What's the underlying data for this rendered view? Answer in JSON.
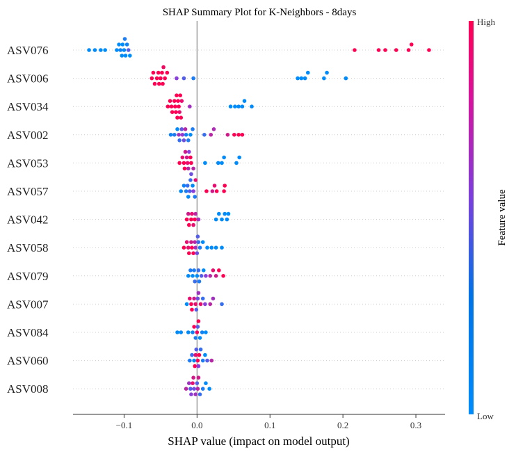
{
  "chart_data": {
    "type": "scatter",
    "title": "SHAP Summary Plot for K-Neighbors - 8days",
    "xlabel": "SHAP value (impact on model output)",
    "xlim": [
      -0.17,
      0.34
    ],
    "xticks": [
      -0.1,
      0.0,
      0.1,
      0.2,
      0.3
    ],
    "xtick_labels": [
      "−0.1",
      "0.0",
      "0.1",
      "0.2",
      "0.3"
    ],
    "colorbar": {
      "label": "Feature value",
      "high_label": "High",
      "low_label": "Low",
      "low_color": "#008bfb",
      "mid_color": "#8a3fdc",
      "high_color": "#ff0052"
    },
    "features": [
      {
        "name": "ASV076",
        "points": [
          {
            "x": -0.148,
            "v": 0.0
          },
          {
            "x": -0.14,
            "v": 0.0
          },
          {
            "x": -0.132,
            "v": 0.0
          },
          {
            "x": -0.126,
            "v": 0.0
          },
          {
            "x": -0.11,
            "v": 0.0
          },
          {
            "x": -0.107,
            "v": 0.0
          },
          {
            "x": -0.105,
            "v": 0.05
          },
          {
            "x": -0.103,
            "v": 0.0
          },
          {
            "x": -0.1,
            "v": 0.0
          },
          {
            "x": -0.098,
            "v": 0.0
          },
          {
            "x": -0.096,
            "v": 0.05
          },
          {
            "x": -0.094,
            "v": 0.3
          },
          {
            "x": -0.092,
            "v": 0.0
          },
          {
            "x": -0.102,
            "v": 0.0
          },
          {
            "x": -0.099,
            "v": 0.1
          },
          {
            "x": 0.216,
            "v": 1.0
          },
          {
            "x": 0.249,
            "v": 1.0
          },
          {
            "x": 0.258,
            "v": 1.0
          },
          {
            "x": 0.273,
            "v": 1.0
          },
          {
            "x": 0.29,
            "v": 1.0
          },
          {
            "x": 0.294,
            "v": 1.0
          },
          {
            "x": 0.318,
            "v": 1.0
          }
        ]
      },
      {
        "name": "ASV006",
        "points": [
          {
            "x": -0.062,
            "v": 1.0
          },
          {
            "x": -0.058,
            "v": 1.0
          },
          {
            "x": -0.055,
            "v": 1.0
          },
          {
            "x": -0.052,
            "v": 1.0
          },
          {
            "x": -0.05,
            "v": 1.0
          },
          {
            "x": -0.048,
            "v": 1.0
          },
          {
            "x": -0.046,
            "v": 0.95
          },
          {
            "x": -0.044,
            "v": 1.0
          },
          {
            "x": -0.06,
            "v": 1.0
          },
          {
            "x": -0.053,
            "v": 1.0
          },
          {
            "x": -0.047,
            "v": 1.0
          },
          {
            "x": -0.041,
            "v": 1.0
          },
          {
            "x": -0.028,
            "v": 0.5
          },
          {
            "x": -0.018,
            "v": 0.3
          },
          {
            "x": -0.005,
            "v": 0.1
          },
          {
            "x": 0.138,
            "v": 0.0
          },
          {
            "x": 0.143,
            "v": 0.0
          },
          {
            "x": 0.148,
            "v": 0.0
          },
          {
            "x": 0.152,
            "v": 0.0
          },
          {
            "x": 0.174,
            "v": 0.0
          },
          {
            "x": 0.178,
            "v": 0.0
          },
          {
            "x": 0.204,
            "v": 0.0
          }
        ]
      },
      {
        "name": "ASV034",
        "points": [
          {
            "x": -0.04,
            "v": 1.0
          },
          {
            "x": -0.037,
            "v": 1.0
          },
          {
            "x": -0.034,
            "v": 1.0
          },
          {
            "x": -0.031,
            "v": 1.0
          },
          {
            "x": -0.029,
            "v": 1.0
          },
          {
            "x": -0.027,
            "v": 1.0
          },
          {
            "x": -0.025,
            "v": 1.0
          },
          {
            "x": -0.023,
            "v": 1.0
          },
          {
            "x": -0.021,
            "v": 0.9
          },
          {
            "x": -0.035,
            "v": 1.0
          },
          {
            "x": -0.03,
            "v": 1.0
          },
          {
            "x": -0.026,
            "v": 1.0
          },
          {
            "x": -0.022,
            "v": 1.0
          },
          {
            "x": -0.028,
            "v": 1.0
          },
          {
            "x": -0.024,
            "v": 0.9
          },
          {
            "x": -0.01,
            "v": 0.6
          },
          {
            "x": 0.046,
            "v": 0.0
          },
          {
            "x": 0.052,
            "v": 0.0
          },
          {
            "x": 0.057,
            "v": 0.0
          },
          {
            "x": 0.062,
            "v": 0.0
          },
          {
            "x": 0.065,
            "v": 0.0
          },
          {
            "x": 0.075,
            "v": 0.0
          }
        ]
      },
      {
        "name": "ASV002",
        "points": [
          {
            "x": -0.036,
            "v": 0.05
          },
          {
            "x": -0.031,
            "v": 0.1
          },
          {
            "x": -0.027,
            "v": 0.0
          },
          {
            "x": -0.024,
            "v": 0.2
          },
          {
            "x": -0.021,
            "v": 0.35
          },
          {
            "x": -0.018,
            "v": 0.4
          },
          {
            "x": -0.015,
            "v": 0.05
          },
          {
            "x": -0.012,
            "v": 0.1
          },
          {
            "x": -0.009,
            "v": 0.0
          },
          {
            "x": -0.025,
            "v": 0.6
          },
          {
            "x": -0.02,
            "v": 0.55
          },
          {
            "x": -0.016,
            "v": 0.7
          },
          {
            "x": -0.006,
            "v": 0.1
          },
          {
            "x": 0.01,
            "v": 0.2
          },
          {
            "x": 0.019,
            "v": 0.7
          },
          {
            "x": 0.023,
            "v": 0.65
          },
          {
            "x": 0.042,
            "v": 0.8
          },
          {
            "x": 0.051,
            "v": 1.0
          },
          {
            "x": 0.057,
            "v": 1.0
          },
          {
            "x": 0.062,
            "v": 1.0
          }
        ]
      },
      {
        "name": "ASV053",
        "points": [
          {
            "x": -0.024,
            "v": 1.0
          },
          {
            "x": -0.02,
            "v": 0.9
          },
          {
            "x": -0.017,
            "v": 1.0
          },
          {
            "x": -0.014,
            "v": 0.8
          },
          {
            "x": -0.011,
            "v": 0.5
          },
          {
            "x": -0.008,
            "v": 1.0
          },
          {
            "x": -0.005,
            "v": 0.7
          },
          {
            "x": -0.018,
            "v": 1.0
          },
          {
            "x": -0.013,
            "v": 0.9
          },
          {
            "x": -0.009,
            "v": 1.0
          },
          {
            "x": -0.016,
            "v": 0.8
          },
          {
            "x": -0.012,
            "v": 0.7
          },
          {
            "x": -0.008,
            "v": 0.4
          },
          {
            "x": 0.011,
            "v": 0.0
          },
          {
            "x": 0.029,
            "v": 0.0
          },
          {
            "x": 0.034,
            "v": 0.0
          },
          {
            "x": 0.037,
            "v": 0.0
          },
          {
            "x": 0.054,
            "v": 0.0
          },
          {
            "x": 0.058,
            "v": 0.0
          }
        ]
      },
      {
        "name": "ASV057",
        "points": [
          {
            "x": -0.022,
            "v": 0.0
          },
          {
            "x": -0.018,
            "v": 0.05
          },
          {
            "x": -0.015,
            "v": 0.1
          },
          {
            "x": -0.012,
            "v": 0.0
          },
          {
            "x": -0.009,
            "v": 0.2
          },
          {
            "x": -0.006,
            "v": 0.0
          },
          {
            "x": -0.003,
            "v": 0.1
          },
          {
            "x": -0.01,
            "v": 0.3
          },
          {
            "x": -0.005,
            "v": 0.5
          },
          {
            "x": -0.013,
            "v": 0.2
          },
          {
            "x": -0.002,
            "v": 0.9
          },
          {
            "x": 0.013,
            "v": 1.0
          },
          {
            "x": 0.021,
            "v": 0.8
          },
          {
            "x": 0.024,
            "v": 0.9
          },
          {
            "x": 0.027,
            "v": 1.0
          },
          {
            "x": 0.037,
            "v": 1.0
          },
          {
            "x": 0.038,
            "v": 1.0
          }
        ]
      },
      {
        "name": "ASV042",
        "points": [
          {
            "x": -0.014,
            "v": 1.0
          },
          {
            "x": -0.011,
            "v": 1.0
          },
          {
            "x": -0.008,
            "v": 1.0
          },
          {
            "x": -0.005,
            "v": 0.9
          },
          {
            "x": -0.002,
            "v": 0.7
          },
          {
            "x": 0.002,
            "v": 0.6
          },
          {
            "x": -0.012,
            "v": 0.8
          },
          {
            "x": -0.007,
            "v": 0.9
          },
          {
            "x": -0.003,
            "v": 1.0
          },
          {
            "x": 0.026,
            "v": 0.0
          },
          {
            "x": 0.03,
            "v": 0.0
          },
          {
            "x": 0.034,
            "v": 0.0
          },
          {
            "x": 0.038,
            "v": 0.0
          },
          {
            "x": 0.041,
            "v": 0.0
          },
          {
            "x": 0.043,
            "v": 0.0
          }
        ]
      },
      {
        "name": "ASV058",
        "points": [
          {
            "x": -0.018,
            "v": 1.0
          },
          {
            "x": -0.014,
            "v": 0.9
          },
          {
            "x": -0.011,
            "v": 1.0
          },
          {
            "x": -0.008,
            "v": 0.8
          },
          {
            "x": -0.005,
            "v": 1.0
          },
          {
            "x": -0.002,
            "v": 0.6
          },
          {
            "x": 0.001,
            "v": 0.3
          },
          {
            "x": 0.004,
            "v": 0.1
          },
          {
            "x": -0.012,
            "v": 0.9
          },
          {
            "x": -0.007,
            "v": 1.0
          },
          {
            "x": -0.003,
            "v": 0.7
          },
          {
            "x": 0.0,
            "v": 0.4
          },
          {
            "x": 0.002,
            "v": 0.2
          },
          {
            "x": 0.008,
            "v": 0.0
          },
          {
            "x": 0.014,
            "v": 0.0
          },
          {
            "x": 0.02,
            "v": 0.0
          },
          {
            "x": 0.026,
            "v": 0.0
          },
          {
            "x": 0.034,
            "v": 0.0
          }
        ]
      },
      {
        "name": "ASV079",
        "points": [
          {
            "x": -0.012,
            "v": 0.0
          },
          {
            "x": -0.009,
            "v": 0.1
          },
          {
            "x": -0.006,
            "v": 0.0
          },
          {
            "x": -0.003,
            "v": 0.2
          },
          {
            "x": 0.0,
            "v": 0.0
          },
          {
            "x": 0.003,
            "v": 0.1
          },
          {
            "x": 0.006,
            "v": 0.3
          },
          {
            "x": 0.009,
            "v": 0.0
          },
          {
            "x": -0.004,
            "v": 0.1
          },
          {
            "x": 0.002,
            "v": 0.2
          },
          {
            "x": 0.012,
            "v": 0.5
          },
          {
            "x": 0.018,
            "v": 0.7
          },
          {
            "x": 0.022,
            "v": 0.9
          },
          {
            "x": 0.026,
            "v": 0.8
          },
          {
            "x": 0.03,
            "v": 1.0
          },
          {
            "x": 0.036,
            "v": 1.0
          }
        ]
      },
      {
        "name": "ASV007",
        "points": [
          {
            "x": -0.014,
            "v": 0.0
          },
          {
            "x": -0.01,
            "v": 0.9
          },
          {
            "x": -0.007,
            "v": 1.0
          },
          {
            "x": -0.004,
            "v": 0.8
          },
          {
            "x": -0.001,
            "v": 0.3
          },
          {
            "x": 0.002,
            "v": 0.6
          },
          {
            "x": 0.005,
            "v": 0.9
          },
          {
            "x": 0.008,
            "v": 0.2
          },
          {
            "x": -0.008,
            "v": 1.0
          },
          {
            "x": -0.002,
            "v": 0.9
          },
          {
            "x": 0.001,
            "v": 0.4
          },
          {
            "x": 0.011,
            "v": 0.5
          },
          {
            "x": 0.018,
            "v": 0.7
          },
          {
            "x": 0.022,
            "v": 0.6
          },
          {
            "x": 0.034,
            "v": 0.2
          }
        ]
      },
      {
        "name": "ASV084",
        "points": [
          {
            "x": -0.027,
            "v": 0.0
          },
          {
            "x": -0.022,
            "v": 0.0
          },
          {
            "x": -0.012,
            "v": 0.0
          },
          {
            "x": -0.006,
            "v": 0.05
          },
          {
            "x": -0.002,
            "v": 0.1
          },
          {
            "x": 0.001,
            "v": 0.3
          },
          {
            "x": 0.004,
            "v": 0.0
          },
          {
            "x": 0.007,
            "v": 0.05
          },
          {
            "x": 0.012,
            "v": 0.0
          },
          {
            "x": -0.004,
            "v": 1.0
          },
          {
            "x": 0.002,
            "v": 1.0
          },
          {
            "x": 0.0,
            "v": 0.95
          }
        ]
      },
      {
        "name": "ASV060",
        "points": [
          {
            "x": -0.01,
            "v": 0.1
          },
          {
            "x": -0.007,
            "v": 0.2
          },
          {
            "x": -0.004,
            "v": 0.0
          },
          {
            "x": -0.001,
            "v": 0.3
          },
          {
            "x": 0.002,
            "v": 0.5
          },
          {
            "x": 0.005,
            "v": 0.2
          },
          {
            "x": 0.008,
            "v": 0.1
          },
          {
            "x": 0.011,
            "v": 0.0
          },
          {
            "x": 0.014,
            "v": 0.3
          },
          {
            "x": 0.02,
            "v": 0.7
          },
          {
            "x": -0.003,
            "v": 1.0
          },
          {
            "x": 0.001,
            "v": 1.0
          },
          {
            "x": -0.002,
            "v": 0.9
          },
          {
            "x": 0.003,
            "v": 1.0
          }
        ]
      },
      {
        "name": "ASV008",
        "points": [
          {
            "x": -0.015,
            "v": 0.7
          },
          {
            "x": -0.011,
            "v": 0.6
          },
          {
            "x": -0.008,
            "v": 0.5
          },
          {
            "x": -0.005,
            "v": 0.8
          },
          {
            "x": -0.002,
            "v": 0.6
          },
          {
            "x": 0.001,
            "v": 0.7
          },
          {
            "x": 0.004,
            "v": 0.2
          },
          {
            "x": 0.008,
            "v": 0.1
          },
          {
            "x": 0.012,
            "v": 0.0
          },
          {
            "x": 0.017,
            "v": 0.0
          },
          {
            "x": -0.009,
            "v": 0.3
          },
          {
            "x": -0.004,
            "v": 0.4
          },
          {
            "x": 0.002,
            "v": 0.8
          },
          {
            "x": -0.006,
            "v": 0.9
          },
          {
            "x": 0.0,
            "v": 0.3
          }
        ]
      }
    ]
  }
}
